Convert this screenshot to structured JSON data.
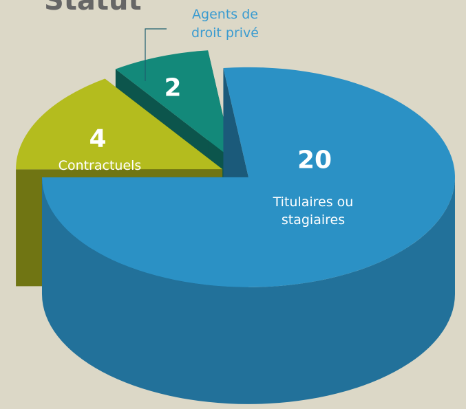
{
  "chart_data": {
    "type": "pie",
    "title": "Statut",
    "categories": [
      "Titulaires ou stagiaires",
      "Contractuels",
      "Agents de droit privé"
    ],
    "values": [
      20,
      4,
      2
    ],
    "colors": [
      "#2b91c5",
      "#b4bc1e",
      "#13897a"
    ]
  }
}
